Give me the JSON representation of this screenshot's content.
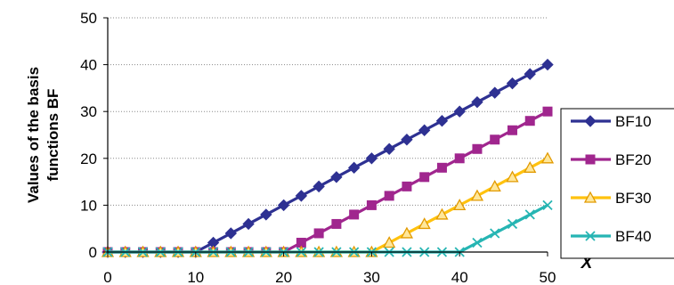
{
  "chart_data": {
    "type": "line",
    "title": "",
    "xlabel": "X",
    "ylabel": "Values of the basis functions BF",
    "x": [
      0,
      2,
      4,
      6,
      8,
      10,
      12,
      14,
      16,
      18,
      20,
      22,
      24,
      26,
      28,
      30,
      32,
      34,
      36,
      38,
      40,
      42,
      44,
      46,
      48,
      50
    ],
    "xlim": [
      0,
      50
    ],
    "ylim": [
      0,
      50
    ],
    "x_ticks": [
      "0",
      "10",
      "20",
      "30",
      "40",
      "50"
    ],
    "y_ticks": [
      "0",
      "10",
      "20",
      "30",
      "40",
      "50"
    ],
    "grid": "horizontal dotted",
    "legend_position": "right",
    "series": [
      {
        "name": "BF10",
        "color": "#2E3192",
        "marker": "diamond",
        "values": [
          0,
          0,
          0,
          0,
          0,
          0,
          2,
          4,
          6,
          8,
          10,
          12,
          14,
          16,
          18,
          20,
          22,
          24,
          26,
          28,
          30,
          32,
          34,
          36,
          38,
          40
        ]
      },
      {
        "name": "BF20",
        "color": "#A0268E",
        "marker": "square",
        "values": [
          0,
          0,
          0,
          0,
          0,
          0,
          0,
          0,
          0,
          0,
          0,
          2,
          4,
          6,
          8,
          10,
          12,
          14,
          16,
          18,
          20,
          22,
          24,
          26,
          28,
          30
        ]
      },
      {
        "name": "BF30",
        "color": "#FFC20E",
        "marker": "triangle",
        "values": [
          0,
          0,
          0,
          0,
          0,
          0,
          0,
          0,
          0,
          0,
          0,
          0,
          0,
          0,
          0,
          0,
          2,
          4,
          6,
          8,
          10,
          12,
          14,
          16,
          18,
          20
        ]
      },
      {
        "name": "BF40",
        "color": "#26B5B3",
        "marker": "x",
        "values": [
          0,
          0,
          0,
          0,
          0,
          0,
          0,
          0,
          0,
          0,
          0,
          0,
          0,
          0,
          0,
          0,
          0,
          0,
          0,
          0,
          0,
          2,
          4,
          6,
          8,
          10
        ]
      }
    ]
  }
}
